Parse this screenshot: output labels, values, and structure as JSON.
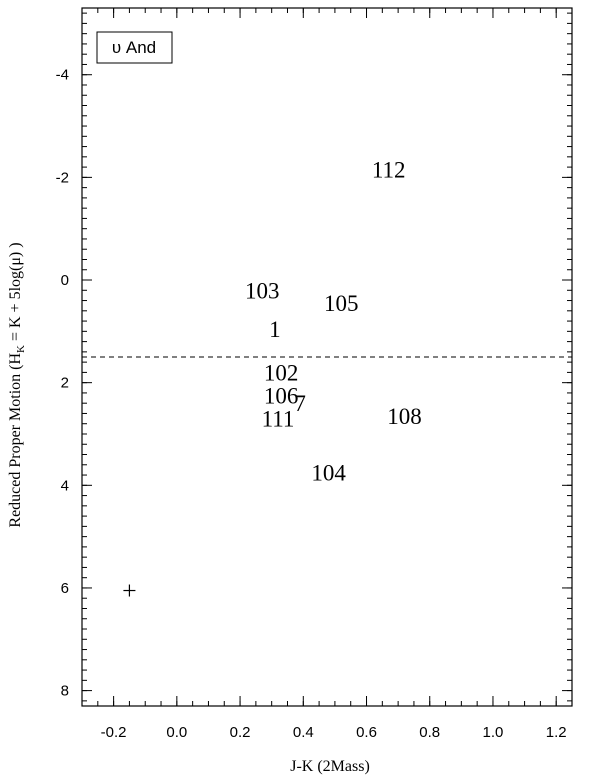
{
  "chart_data": {
    "type": "scatter",
    "title": "",
    "legend_box": {
      "text": "υ And"
    },
    "xlabel": "J-K (2Mass)",
    "ylabel": {
      "main": "Reduced Proper Motion (H",
      "sub": "K",
      "rest": " = K + 5log(μ) )"
    },
    "xlim": [
      -0.3,
      1.25
    ],
    "ylim": [
      -5.3,
      8.3
    ],
    "y_reversed": true,
    "x_ticks": [
      -0.2,
      0.0,
      0.2,
      0.4,
      0.6,
      0.8,
      1.0,
      1.2
    ],
    "x_tick_labels": [
      "-0.2",
      "0.0",
      "0.2",
      "0.4",
      "0.6",
      "0.8",
      "1.0",
      "1.2"
    ],
    "y_ticks": [
      -4,
      -2,
      0,
      2,
      4,
      6,
      8
    ],
    "y_tick_labels": [
      "-4",
      "-2",
      "0",
      "2",
      "4",
      "6",
      "8"
    ],
    "grid": false,
    "reference_line": {
      "y": 1.5,
      "style": "dashed"
    },
    "marker": {
      "x": -0.15,
      "y": 6.05,
      "symbol": "+"
    },
    "points": [
      {
        "label": "112",
        "x": 0.67,
        "y": -2.15
      },
      {
        "label": "103",
        "x": 0.27,
        "y": 0.2
      },
      {
        "label": "105",
        "x": 0.52,
        "y": 0.45
      },
      {
        "label": "1",
        "x": 0.31,
        "y": 0.95
      },
      {
        "label": "102",
        "x": 0.33,
        "y": 1.8
      },
      {
        "label": "106",
        "x": 0.33,
        "y": 2.25
      },
      {
        "label": "7",
        "x": 0.39,
        "y": 2.4
      },
      {
        "label": "111",
        "x": 0.32,
        "y": 2.7
      },
      {
        "label": "108",
        "x": 0.72,
        "y": 2.65
      },
      {
        "label": "104",
        "x": 0.48,
        "y": 3.75
      }
    ]
  }
}
